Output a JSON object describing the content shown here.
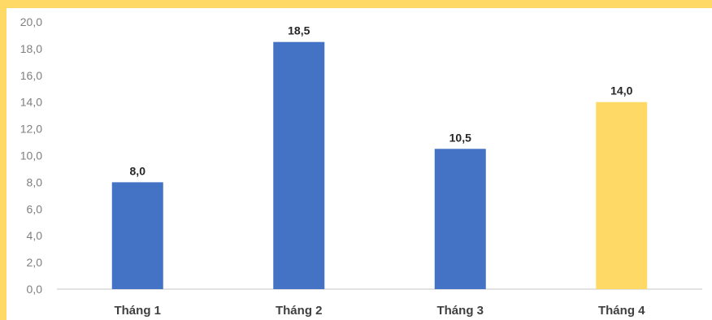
{
  "chart_data": {
    "type": "bar",
    "title": "",
    "xlabel": "",
    "ylabel": "",
    "categories": [
      "Tháng 1",
      "Tháng 2",
      "Tháng 3",
      "Tháng 4"
    ],
    "values": [
      8.0,
      18.5,
      10.5,
      14.0
    ],
    "data_labels": [
      "8,0",
      "18,5",
      "10,5",
      "14,0"
    ],
    "ylim": [
      0,
      20
    ],
    "yticks": [
      "0,0",
      "2,0",
      "4,0",
      "6,0",
      "8,0",
      "10,0",
      "12,0",
      "14,0",
      "16,0",
      "18,0",
      "20,0"
    ],
    "grid": false,
    "legend": "none",
    "colors": {
      "bar_default": "#4472C4",
      "bar_highlight": "#FFD966",
      "highlight_index": 3,
      "frame": "#FFD966",
      "axis": "#D9D9D9"
    }
  }
}
